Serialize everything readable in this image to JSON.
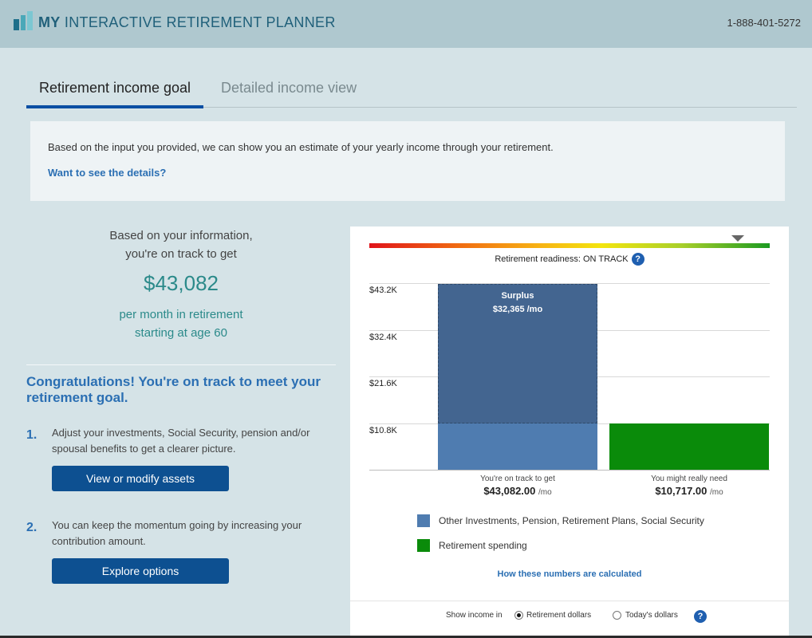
{
  "header": {
    "title_bold": "MY",
    "title_rest": "INTERACTIVE RETIREMENT PLANNER",
    "phone": "1-888-401-5272",
    "logo_icon": "bar-logo-icon",
    "accent": "#20607a"
  },
  "tabs": [
    {
      "label": "Retirement income goal",
      "active": true
    },
    {
      "label": "Detailed income view",
      "active": false
    }
  ],
  "info": {
    "text": "Based on the input you provided, we can show you an estimate of your yearly income through your retirement.",
    "link": "Want to see the details?"
  },
  "summary": {
    "line1": "Based on your information,",
    "line2": "you're on track to get",
    "amount": "$43,082",
    "line3": "per month in retirement",
    "line4": "starting at age 60"
  },
  "congrats": "Congratulations! You're on track to meet your retirement goal.",
  "steps": [
    {
      "num": "1.",
      "text": "Adjust your investments, Social Security, pension and/or spousal benefits to get a clearer picture.",
      "button": "View or modify assets"
    },
    {
      "num": "2.",
      "text": "You can keep the momentum going by increasing your contribution amount.",
      "button": "Explore options"
    }
  ],
  "readiness": {
    "label": "Retirement readiness: ON TRACK",
    "help": "?",
    "level": 0.92
  },
  "chart_data": {
    "type": "bar",
    "y_ticks": [
      "$43.2K",
      "$32.4K",
      "$21.6K",
      "$10.8K"
    ],
    "ylim": [
      0,
      43200
    ],
    "bars": [
      {
        "label": "You're on track to get",
        "value_text": "$43,082.00",
        "unit": "/mo",
        "value": 43082,
        "base_value": 10717,
        "color": "#4f7cb0",
        "surplus_color": "#436590"
      },
      {
        "label": "You might really need",
        "value_text": "$10,717.00",
        "unit": "/mo",
        "value": 10717,
        "color": "#0a8b0a"
      }
    ],
    "annotation": {
      "title": "Surplus",
      "value": "$32,365 /mo"
    },
    "legend": [
      {
        "label": "Other Investments, Pension, Retirement Plans, Social Security",
        "color": "#4f7cb0"
      },
      {
        "label": "Retirement spending",
        "color": "#0a8b0a"
      }
    ]
  },
  "how_link": "How these numbers are calculated",
  "income_toggle": {
    "label": "Show income in",
    "options": [
      "Retirement dollars",
      "Today's dollars"
    ],
    "selected": 0,
    "help": "?"
  }
}
